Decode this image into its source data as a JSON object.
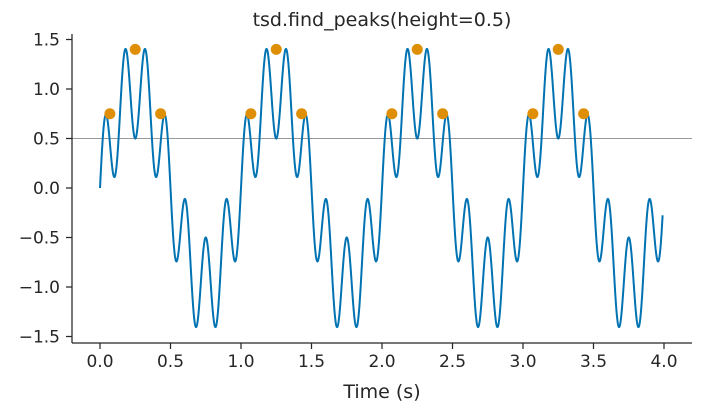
{
  "chart_data": {
    "type": "line",
    "title": "tsd.find_peaks(height=0.5)",
    "xlabel": "Time (s)",
    "ylabel": "",
    "xlim": [
      -0.2,
      4.2
    ],
    "ylim": [
      -1.55,
      1.55
    ],
    "xticks": [
      0.0,
      0.5,
      1.0,
      1.5,
      2.0,
      2.5,
      3.0,
      3.5,
      4.0
    ],
    "xtick_labels": [
      "0.0",
      "0.5",
      "1.0",
      "1.5",
      "2.0",
      "2.5",
      "3.0",
      "3.5",
      "4.0"
    ],
    "yticks": [
      -1.5,
      -1.0,
      -0.5,
      0.0,
      0.5,
      1.0,
      1.5
    ],
    "ytick_labels": [
      "−1.5",
      "−1.0",
      "−0.5",
      "0.0",
      "0.5",
      "1.0",
      "1.5"
    ],
    "threshold": 0.5,
    "grid": false,
    "series": [
      {
        "kind": "line",
        "color": "#0173b2",
        "formula": "sin(2*pi*1*t) + 0.5*sin(2*pi*7*t)",
        "t_start": 0.0,
        "t_end": 3.99,
        "sample_step": 0.002
      },
      {
        "kind": "scatter",
        "color": "#de8f05",
        "x": [
          0.07,
          0.25,
          0.43,
          1.07,
          1.25,
          1.43,
          2.07,
          2.25,
          2.43,
          3.07,
          3.25,
          3.43
        ],
        "y": [
          0.75,
          1.4,
          0.75,
          0.75,
          1.4,
          0.75,
          0.75,
          1.4,
          0.75,
          0.75,
          1.4,
          0.75
        ]
      }
    ],
    "colors": {
      "line": "#0173b2",
      "peaks": "#de8f05",
      "threshold": "#999999",
      "axis": "#262626"
    }
  }
}
